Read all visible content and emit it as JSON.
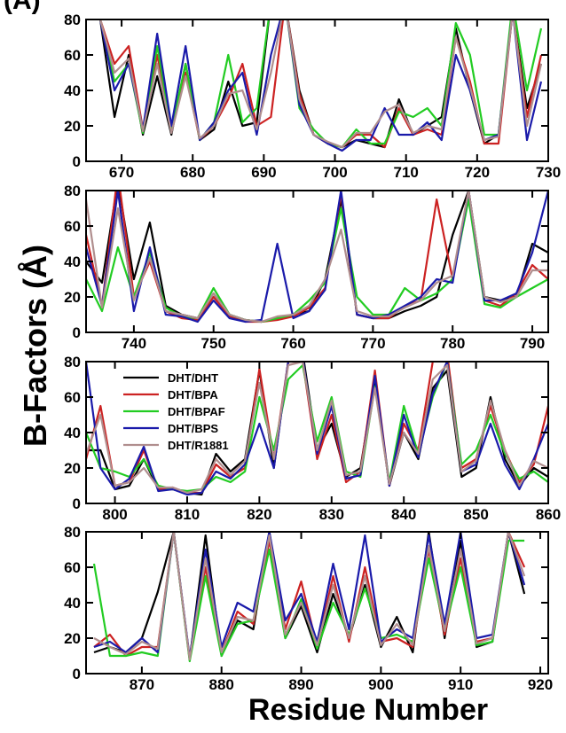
{
  "panel_label": "(A)",
  "ylabel": "B-Factors (Å)",
  "xlabel": "Residue Number",
  "legend": {
    "panel": 2,
    "position": "upper left",
    "entries": [
      {
        "name": "DHT/DHT",
        "color": "#000000"
      },
      {
        "name": "DHT/BPA",
        "color": "#cc2222"
      },
      {
        "name": "DHT/BPAF",
        "color": "#22cc22"
      },
      {
        "name": "DHT/BPS",
        "color": "#1a1aaa"
      },
      {
        "name": "DHT/R1881",
        "color": "#b08e8e"
      }
    ]
  },
  "chart_data": [
    {
      "type": "line",
      "xlim": [
        665,
        730
      ],
      "ylim": [
        0,
        80
      ],
      "xticks": [
        670,
        680,
        690,
        700,
        710,
        720,
        730
      ],
      "yticks": [
        0,
        20,
        40,
        60,
        80
      ],
      "x": [
        667,
        669,
        671,
        673,
        675,
        677,
        679,
        681,
        683,
        685,
        687,
        689,
        691,
        693,
        695,
        697,
        699,
        701,
        703,
        705,
        707,
        709,
        711,
        713,
        715,
        717,
        719,
        721,
        723,
        725,
        727,
        729
      ],
      "series": [
        {
          "color": "#000000",
          "values": [
            80,
            25,
            60,
            15,
            48,
            15,
            55,
            12,
            18,
            45,
            20,
            22,
            90,
            90,
            40,
            15,
            10,
            8,
            12,
            10,
            8,
            35,
            15,
            20,
            25,
            75,
            40,
            10,
            15,
            85,
            30,
            55
          ]
        },
        {
          "color": "#cc2222",
          "values": [
            80,
            55,
            65,
            18,
            60,
            18,
            50,
            12,
            20,
            35,
            55,
            20,
            25,
            90,
            38,
            15,
            10,
            8,
            15,
            15,
            8,
            30,
            15,
            18,
            15,
            70,
            45,
            10,
            10,
            85,
            25,
            60
          ]
        },
        {
          "color": "#22cc22",
          "values": [
            80,
            45,
            55,
            16,
            65,
            18,
            55,
            12,
            22,
            60,
            22,
            30,
            90,
            90,
            30,
            18,
            10,
            8,
            18,
            10,
            10,
            28,
            25,
            30,
            20,
            78,
            60,
            15,
            15,
            90,
            40,
            75
          ]
        },
        {
          "color": "#1a1aaa",
          "values": [
            80,
            40,
            55,
            18,
            72,
            20,
            65,
            12,
            22,
            40,
            50,
            15,
            60,
            90,
            32,
            15,
            10,
            6,
            12,
            12,
            30,
            15,
            15,
            22,
            12,
            60,
            40,
            12,
            15,
            85,
            12,
            45
          ]
        },
        {
          "color": "#b08e8e",
          "values": [
            80,
            50,
            58,
            17,
            55,
            16,
            48,
            13,
            20,
            38,
            40,
            18,
            50,
            90,
            35,
            15,
            11,
            8,
            16,
            16,
            28,
            32,
            16,
            20,
            18,
            70,
            42,
            12,
            14,
            85,
            20,
            55
          ]
        }
      ]
    },
    {
      "type": "line",
      "xlim": [
        734,
        792
      ],
      "ylim": [
        0,
        80
      ],
      "xticks": [
        740,
        750,
        760,
        770,
        780,
        790
      ],
      "yticks": [
        0,
        20,
        40,
        60,
        80
      ],
      "x": [
        734,
        736,
        738,
        740,
        742,
        744,
        746,
        748,
        750,
        752,
        754,
        756,
        758,
        760,
        762,
        764,
        766,
        768,
        770,
        772,
        774,
        776,
        778,
        780,
        782,
        784,
        786,
        788,
        790,
        792
      ],
      "series": [
        {
          "color": "#000000",
          "values": [
            40,
            28,
            85,
            30,
            62,
            15,
            10,
            8,
            22,
            10,
            7,
            6,
            8,
            10,
            12,
            30,
            75,
            10,
            8,
            8,
            12,
            15,
            20,
            55,
            80,
            20,
            18,
            20,
            50,
            45
          ]
        },
        {
          "color": "#cc2222",
          "values": [
            55,
            15,
            90,
            20,
            40,
            12,
            8,
            7,
            20,
            9,
            6,
            6,
            7,
            9,
            14,
            25,
            78,
            10,
            8,
            8,
            15,
            18,
            75,
            30,
            80,
            18,
            15,
            22,
            38,
            30
          ]
        },
        {
          "color": "#22cc22",
          "values": [
            30,
            12,
            48,
            20,
            45,
            14,
            9,
            8,
            25,
            10,
            7,
            6,
            8,
            10,
            18,
            28,
            70,
            20,
            10,
            10,
            25,
            18,
            22,
            30,
            75,
            16,
            14,
            20,
            25,
            30
          ]
        },
        {
          "color": "#1a1aaa",
          "values": [
            48,
            15,
            80,
            12,
            48,
            10,
            9,
            6,
            18,
            8,
            6,
            7,
            50,
            8,
            12,
            24,
            80,
            10,
            8,
            10,
            15,
            20,
            30,
            28,
            80,
            18,
            18,
            22,
            45,
            80
          ]
        },
        {
          "color": "#b08e8e",
          "values": [
            75,
            14,
            70,
            18,
            42,
            12,
            10,
            8,
            22,
            10,
            7,
            6,
            9,
            10,
            15,
            30,
            58,
            12,
            9,
            9,
            14,
            18,
            28,
            32,
            80,
            20,
            17,
            20,
            35,
            35
          ]
        }
      ]
    },
    {
      "type": "line",
      "xlim": [
        796,
        860
      ],
      "ylim": [
        0,
        80
      ],
      "xticks": [
        800,
        810,
        820,
        830,
        840,
        850,
        860
      ],
      "yticks": [
        0,
        20,
        40,
        60,
        80
      ],
      "x": [
        796,
        798,
        800,
        802,
        804,
        806,
        808,
        810,
        812,
        814,
        816,
        818,
        820,
        822,
        824,
        826,
        828,
        830,
        832,
        834,
        836,
        838,
        840,
        842,
        844,
        846,
        848,
        850,
        852,
        854,
        856,
        858,
        860
      ],
      "series": [
        {
          "color": "#000000",
          "values": [
            30,
            30,
            8,
            10,
            25,
            8,
            8,
            6,
            5,
            28,
            18,
            25,
            75,
            20,
            80,
            85,
            30,
            45,
            15,
            20,
            70,
            10,
            40,
            25,
            65,
            75,
            15,
            20,
            60,
            25,
            10,
            20,
            15
          ]
        },
        {
          "color": "#cc2222",
          "values": [
            25,
            55,
            10,
            12,
            30,
            8,
            9,
            6,
            6,
            22,
            15,
            20,
            76,
            25,
            80,
            80,
            25,
            50,
            12,
            18,
            75,
            10,
            45,
            30,
            80,
            85,
            20,
            25,
            55,
            30,
            12,
            22,
            55
          ]
        },
        {
          "color": "#22cc22",
          "values": [
            40,
            20,
            18,
            15,
            25,
            10,
            8,
            7,
            8,
            15,
            12,
            18,
            60,
            30,
            70,
            78,
            35,
            60,
            18,
            15,
            66,
            12,
            55,
            28,
            60,
            80,
            22,
            30,
            50,
            28,
            14,
            18,
            12
          ]
        },
        {
          "color": "#1a1aaa",
          "values": [
            80,
            20,
            8,
            14,
            32,
            7,
            8,
            5,
            6,
            18,
            14,
            22,
            45,
            20,
            80,
            82,
            28,
            55,
            14,
            16,
            72,
            10,
            50,
            26,
            62,
            80,
            18,
            22,
            45,
            22,
            8,
            25,
            45
          ]
        },
        {
          "color": "#b08e8e",
          "values": [
            28,
            50,
            10,
            12,
            20,
            9,
            9,
            6,
            8,
            25,
            16,
            24,
            68,
            25,
            78,
            80,
            30,
            58,
            16,
            18,
            65,
            11,
            40,
            28,
            70,
            78,
            18,
            24,
            58,
            30,
            10,
            24,
            20
          ]
        }
      ]
    },
    {
      "type": "line",
      "xlim": [
        863,
        921
      ],
      "ylim": [
        0,
        80
      ],
      "xticks": [
        870,
        880,
        890,
        900,
        910,
        920
      ],
      "yticks": [
        0,
        20,
        40,
        60,
        80
      ],
      "x": [
        864,
        866,
        868,
        870,
        872,
        874,
        876,
        878,
        880,
        882,
        884,
        886,
        888,
        890,
        892,
        894,
        896,
        898,
        900,
        902,
        904,
        906,
        908,
        910,
        912,
        914,
        916,
        918
      ],
      "series": [
        {
          "color": "#000000",
          "values": [
            12,
            15,
            12,
            20,
            46,
            80,
            8,
            78,
            10,
            30,
            25,
            80,
            20,
            38,
            12,
            45,
            20,
            50,
            15,
            32,
            12,
            80,
            20,
            75,
            15,
            18,
            80,
            45
          ]
        },
        {
          "color": "#cc2222",
          "values": [
            15,
            22,
            10,
            15,
            15,
            80,
            8,
            60,
            12,
            35,
            28,
            75,
            25,
            52,
            15,
            55,
            18,
            60,
            18,
            20,
            15,
            70,
            22,
            65,
            18,
            20,
            80,
            60
          ]
        },
        {
          "color": "#22cc22",
          "values": [
            62,
            10,
            10,
            12,
            10,
            80,
            7,
            55,
            10,
            28,
            30,
            70,
            20,
            42,
            14,
            40,
            22,
            48,
            20,
            22,
            18,
            65,
            25,
            60,
            16,
            18,
            75,
            75
          ]
        },
        {
          "color": "#1a1aaa",
          "values": [
            15,
            18,
            12,
            20,
            12,
            80,
            9,
            70,
            15,
            40,
            35,
            80,
            30,
            45,
            18,
            62,
            25,
            78,
            18,
            25,
            20,
            78,
            28,
            80,
            20,
            22,
            80,
            50
          ]
        },
        {
          "color": "#b08e8e",
          "values": [
            20,
            15,
            11,
            18,
            14,
            80,
            8,
            65,
            12,
            32,
            30,
            78,
            22,
            40,
            16,
            50,
            20,
            55,
            16,
            28,
            16,
            72,
            24,
            70,
            17,
            20,
            80,
            55
          ]
        }
      ]
    }
  ]
}
